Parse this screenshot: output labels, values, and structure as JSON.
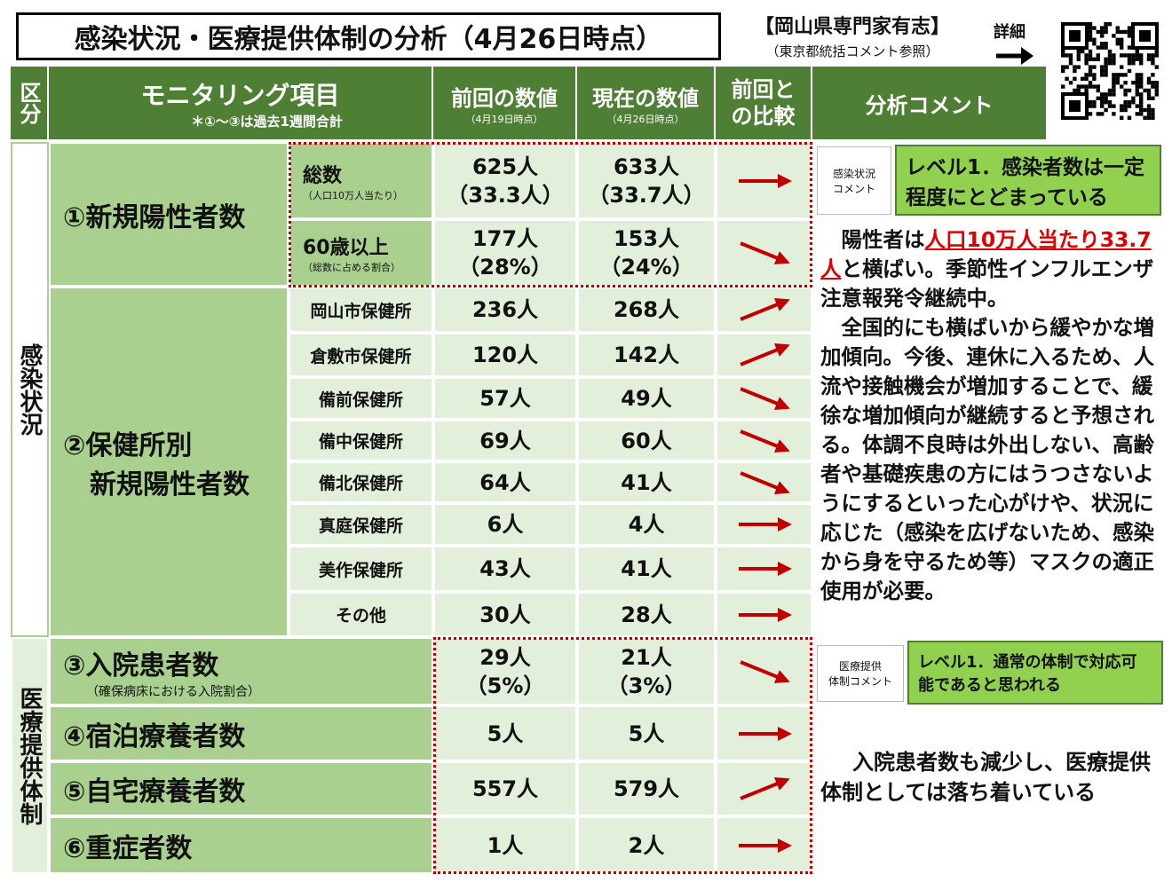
{
  "header": {
    "title": "感染状況・医療提供体制の分析（4月26日時点）",
    "source": "【岡山県専門家有志】",
    "source_note": "（東京都統括コメント参照）",
    "detail": "詳細"
  },
  "table": {
    "columns": [
      "区分",
      "モニタリング項目",
      "前回の数値",
      "現在の数値",
      "前回との比較",
      "分析コメント"
    ],
    "items_note": "＊①～③は過去1週間合計",
    "prev_date": "（4月19日時点）",
    "curr_date": "（4月26日時点）",
    "sections": [
      "感染状況",
      "医療提供体制"
    ],
    "groups": [
      [
        "①新規陽性者数"
      ],
      [
        "②保健所別",
        "新規陽性者数"
      ]
    ],
    "infection_rows": [
      {
        "label": "総数",
        "note": "（人口10万人当たり）",
        "prev": "625人",
        "prev_sub": "（33.3人）",
        "curr": "633人",
        "curr_sub": "（33.7人）"
      },
      {
        "label": "60歳以上",
        "note": "（総数に占める割合）",
        "prev": "177人",
        "prev_sub": "（28%）",
        "curr": "153人",
        "curr_sub": "（24%）"
      },
      {
        "label": "岡山市保健所",
        "prev": "236人",
        "curr": "268人"
      },
      {
        "label": "倉敷市保健所",
        "prev": "120人",
        "curr": "142人"
      },
      {
        "label": "備前保健所",
        "prev": "57人",
        "curr": "49人"
      },
      {
        "label": "備中保健所",
        "prev": "69人",
        "curr": "60人"
      },
      {
        "label": "備北保健所",
        "prev": "64人",
        "curr": "41人"
      },
      {
        "label": "真庭保健所",
        "prev": "6人",
        "curr": "4人"
      },
      {
        "label": "美作保健所",
        "prev": "43人",
        "curr": "41人"
      },
      {
        "label": "その他",
        "prev": "30人",
        "curr": "28人"
      }
    ],
    "medical_rows": [
      {
        "label": "③入院患者数",
        "note": "（確保病床における入院割合）",
        "prev": "29人",
        "prev_sub": "（5%）",
        "curr": "21人",
        "curr_sub": "（3%）"
      },
      {
        "label": "④宿泊療養者数",
        "prev": "5人",
        "curr": "5人"
      },
      {
        "label": "⑤自宅療養者数",
        "prev": "557人",
        "curr": "579人"
      },
      {
        "label": "⑥重症者数",
        "prev": "1人",
        "curr": "2人"
      }
    ]
  },
  "comments": {
    "infection": {
      "tag": [
        "感染状況",
        "コメント"
      ],
      "level": "レベル1．感染者数は一定程度にとどまっている",
      "lead": "陽性者は",
      "highlight": "人口10万人当たり33.7人",
      "lead_rest": "と横ばい。季節性インフルエンザ注意報発令継続中。",
      "text": "全国的にも横ばいから緩やかな増加傾向。今後、連休に入るため、人流や接触機会が増加することで、緩徐な増加傾向が継続すると予想される。体調不良時は外出しない、高齢者や基礎疾患の方にはうつさないようにするといった心がけや、状況に応じた（感染を広げないため、感染から身を守るため等）マスクの適正使用が必要。"
    },
    "medical": {
      "tag": [
        "医療提供",
        "体制コメント"
      ],
      "level": "レベル1．通常の体制で対応可能であると思われる",
      "text": "入院患者数も減少し、医療提供体制としては落ち着いている"
    }
  }
}
